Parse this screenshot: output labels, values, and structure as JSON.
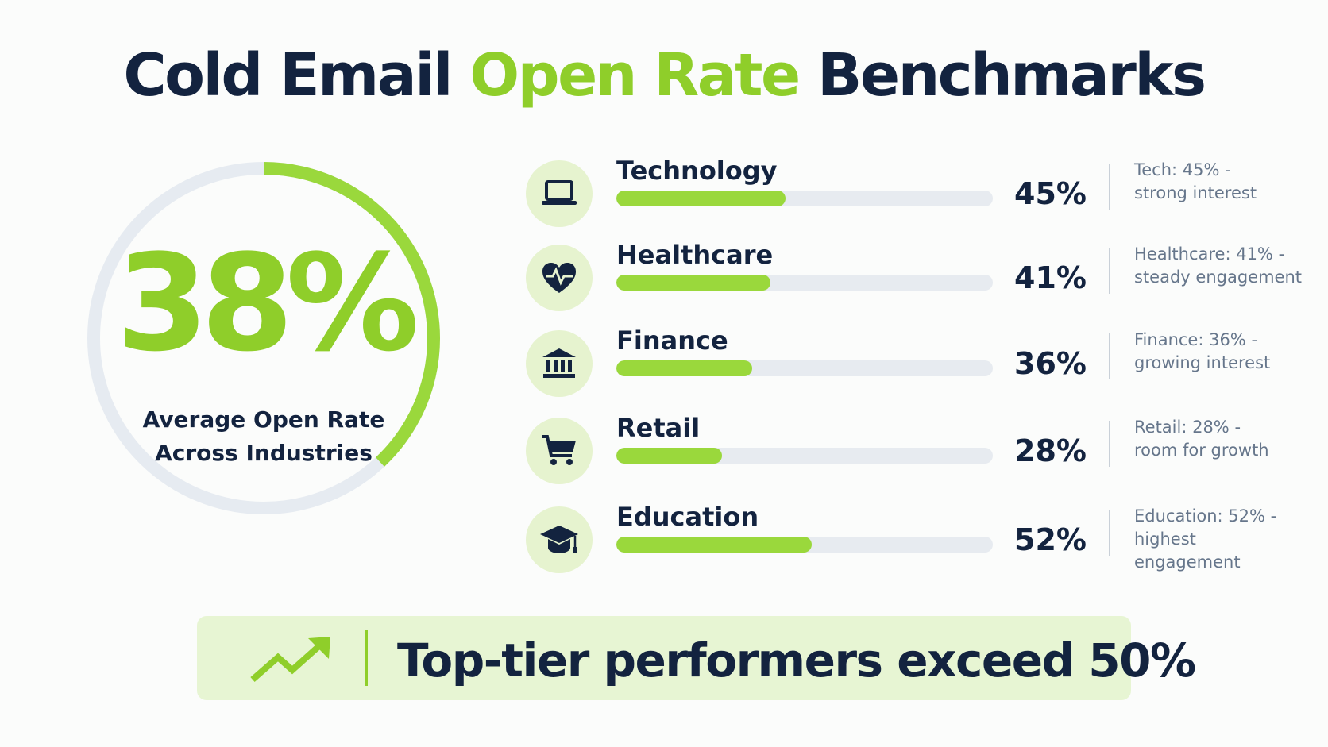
{
  "title": {
    "part1": "Cold Email ",
    "accent": "Open Rate",
    "part2": " Benchmarks"
  },
  "gauge": {
    "value_label": "38%",
    "value": 38,
    "label_line1": "Average Open Rate",
    "label_line2": "Across Industries"
  },
  "chart_data": {
    "type": "bar",
    "orientation": "horizontal",
    "categories": [
      "Technology",
      "Healthcare",
      "Finance",
      "Retail",
      "Education"
    ],
    "values": [
      45,
      41,
      36,
      28,
      52
    ],
    "unit": "%",
    "xlim": [
      0,
      100
    ],
    "value_labels": [
      "45%",
      "41%",
      "36%",
      "28%",
      "52%"
    ],
    "notes": [
      [
        "Tech: 45% -",
        "strong interest"
      ],
      [
        "Healthcare: 41% -",
        "steady engagement"
      ],
      [
        "Finance: 36% -",
        "growing interest"
      ],
      [
        "Retail: 28% -",
        "room for growth"
      ],
      [
        "Education: 52% -",
        "highest engagement"
      ]
    ],
    "icons": [
      "laptop-icon",
      "heart-pulse-icon",
      "bank-icon",
      "cart-icon",
      "graduation-cap-icon"
    ]
  },
  "footer": {
    "text": "Top-tier performers exceed ",
    "highlight": "50%",
    "icon": "trending-up-icon"
  },
  "colors": {
    "accent": "#8fce2a",
    "bar_fill": "#9ad83c",
    "bar_track": "#e7ebf0",
    "navy": "#13233f",
    "icon_bg": "#e6f3cf",
    "footer_bg": "#e7f5d3"
  }
}
